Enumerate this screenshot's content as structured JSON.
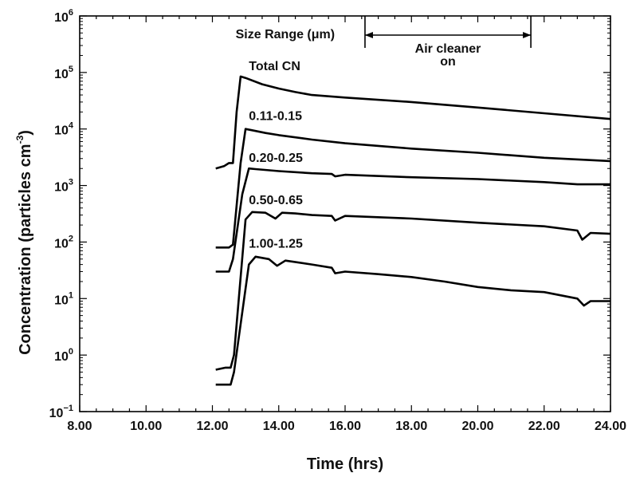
{
  "chart_data": {
    "type": "line",
    "xlabel": "Time (hrs)",
    "ylabel": "Concentration (particles cm",
    "ylabel_unit_exp": "-3",
    "ylabel_close": ")",
    "xlim": [
      8,
      24
    ],
    "ylim_log10": [
      -1,
      6
    ],
    "y_scale": "log",
    "grid": false,
    "x_ticks": [
      8,
      10,
      12,
      14,
      16,
      18,
      20,
      22,
      24
    ],
    "x_tick_labels": [
      "8.00",
      "10.00",
      "12.00",
      "14.00",
      "16.00",
      "18.00",
      "20.00",
      "22.00",
      "24.00"
    ],
    "y_tick_exponents": [
      -1,
      0,
      1,
      2,
      3,
      4,
      5,
      6
    ],
    "y_tick_base": "10",
    "y_tick_exp_labels": [
      "−1",
      "0",
      "1",
      "2",
      "3",
      "4",
      "5",
      "6"
    ],
    "legend_title": "Size Range (μm)",
    "annotation": {
      "line1": "Air cleaner",
      "line2": "on",
      "x_start": 16.6,
      "x_end": 21.6
    },
    "series": [
      {
        "name": "Total CN",
        "x": [
          12.1,
          12.35,
          12.5,
          12.62,
          12.73,
          12.85,
          13.0,
          13.5,
          14.0,
          14.5,
          15.0,
          16.0,
          18.0,
          20.0,
          22.0,
          24.0
        ],
        "y": [
          2000,
          2200,
          2500,
          2500,
          20000,
          85000,
          80000,
          62000,
          52000,
          45000,
          40000,
          36000,
          30000,
          24000,
          19000,
          15000
        ]
      },
      {
        "name": "0.11-0.15",
        "x": [
          12.1,
          12.5,
          12.62,
          12.85,
          13.0,
          13.2,
          13.6,
          14.0,
          15.0,
          16.0,
          18.0,
          20.0,
          22.0,
          24.0
        ],
        "y": [
          80,
          80,
          90,
          2500,
          10000,
          9500,
          8500,
          7800,
          6500,
          5600,
          4500,
          3800,
          3100,
          2700
        ]
      },
      {
        "name": "0.20-0.25",
        "x": [
          12.1,
          12.5,
          12.62,
          12.9,
          13.1,
          13.3,
          14.0,
          15.0,
          15.6,
          15.7,
          16.0,
          18.0,
          20.0,
          22.0,
          23.0,
          24.0
        ],
        "y": [
          30,
          30,
          50,
          700,
          2000,
          1950,
          1800,
          1650,
          1600,
          1450,
          1550,
          1400,
          1300,
          1150,
          1050,
          1050
        ]
      },
      {
        "name": "0.50-0.65",
        "x": [
          12.1,
          12.4,
          12.55,
          12.65,
          13.0,
          13.2,
          13.6,
          13.9,
          14.1,
          14.5,
          15.0,
          15.6,
          15.7,
          16.0,
          18.0,
          20.0,
          22.0,
          23.0,
          23.15,
          23.4,
          24.0
        ],
        "y": [
          0.55,
          0.6,
          0.6,
          1.0,
          250,
          340,
          330,
          260,
          330,
          320,
          300,
          290,
          240,
          290,
          260,
          220,
          190,
          160,
          110,
          145,
          140
        ]
      },
      {
        "name": "1.00-1.25",
        "x": [
          12.1,
          12.4,
          12.55,
          12.65,
          13.1,
          13.3,
          13.7,
          13.95,
          14.2,
          15.0,
          15.6,
          15.7,
          16.0,
          17.0,
          18.0,
          19.0,
          20.0,
          21.0,
          22.0,
          23.0,
          23.2,
          23.4,
          24.0
        ],
        "y": [
          0.3,
          0.3,
          0.3,
          0.5,
          40,
          55,
          50,
          38,
          47,
          40,
          35,
          28,
          30,
          27,
          24,
          20,
          16,
          14,
          13,
          10,
          7.5,
          9,
          9
        ]
      }
    ],
    "series_labels": [
      {
        "series": "Total CN",
        "x": 13.1,
        "y": 110000
      },
      {
        "series": "0.11-0.15",
        "x": 13.1,
        "y": 14500
      },
      {
        "series": "0.20-0.25",
        "x": 13.1,
        "y": 2600
      },
      {
        "series": "0.50-0.65",
        "x": 13.1,
        "y": 470
      },
      {
        "series": "1.00-1.25",
        "x": 13.1,
        "y": 80
      }
    ]
  }
}
